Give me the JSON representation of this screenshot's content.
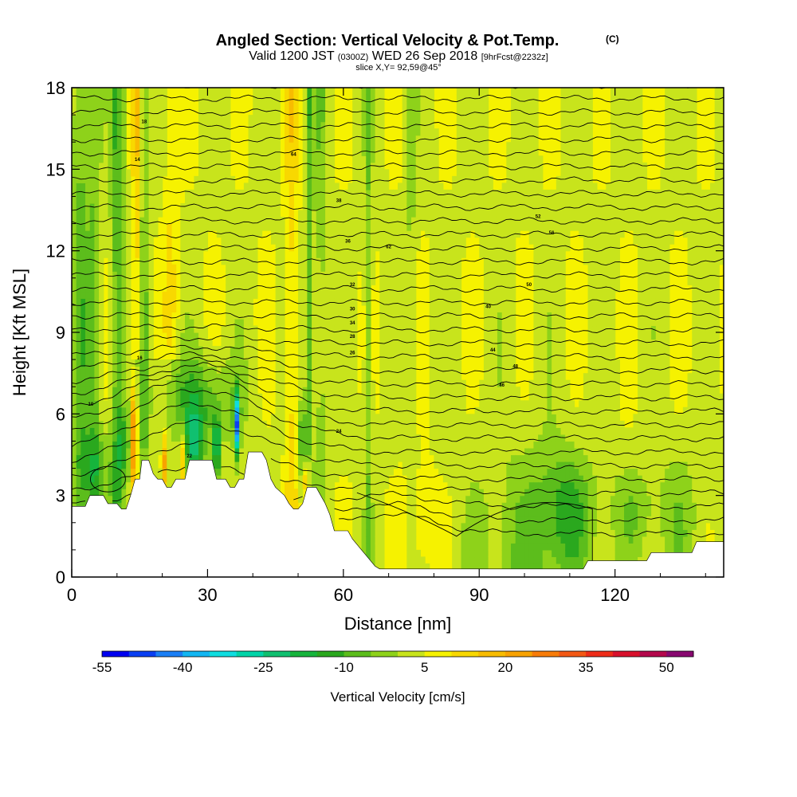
{
  "title": {
    "main": "Angled Section: Vertical Velocity & Pot.Temp.",
    "main_unit": "(C)",
    "valid_prefix": "Valid 1200 JST",
    "valid_utc": "(0300Z)",
    "valid_date": "WED 26 Sep 2018",
    "forecast": "[9hrFcst@2232z]",
    "slice": "slice X,Y= 92,59@45°"
  },
  "chart_data": {
    "type": "heatmap",
    "xlabel": "Distance [nm]",
    "ylabel": "Height [Kft MSL]",
    "xlim": [
      0,
      144
    ],
    "ylim": [
      0,
      18
    ],
    "x_ticks": [
      0,
      30,
      60,
      90,
      120
    ],
    "y_ticks": [
      0,
      3,
      6,
      9,
      12,
      15,
      18
    ],
    "grid": false,
    "colorbar": {
      "title": "Vertical Velocity [cm/s]",
      "levels": [
        -55,
        -50,
        -45,
        -40,
        -35,
        -30,
        -25,
        -20,
        -15,
        -10,
        -5,
        0,
        5,
        10,
        15,
        20,
        25,
        30,
        35,
        40,
        45,
        50,
        55
      ],
      "tick_labels": [
        -55,
        -40,
        -25,
        -10,
        5,
        20,
        35,
        50
      ],
      "colors": [
        "#0000f0",
        "#0a3ff2",
        "#1a7ff5",
        "#12b6f2",
        "#0fdde0",
        "#00d4a8",
        "#10c070",
        "#16b43c",
        "#2aa81e",
        "#5cbd1c",
        "#8ed21a",
        "#c8e41c",
        "#f6f200",
        "#f8d800",
        "#f8bc00",
        "#f8a200",
        "#f87c08",
        "#f35814",
        "#ee2c18",
        "#d8102c",
        "#b4084c",
        "#880870"
      ]
    },
    "terrain_kft": [
      [
        0,
        2.6
      ],
      [
        3,
        2.6
      ],
      [
        4,
        3.0
      ],
      [
        7,
        3.0
      ],
      [
        8,
        2.7
      ],
      [
        10,
        2.7
      ],
      [
        11,
        2.5
      ],
      [
        12,
        2.5
      ],
      [
        13,
        3.0
      ],
      [
        14,
        3.6
      ],
      [
        15,
        3.6
      ],
      [
        15.5,
        4.3
      ],
      [
        17,
        4.3
      ],
      [
        18,
        3.8
      ],
      [
        19,
        3.6
      ],
      [
        20,
        3.6
      ],
      [
        21,
        3.3
      ],
      [
        22,
        3.3
      ],
      [
        23,
        3.6
      ],
      [
        25,
        3.6
      ],
      [
        26,
        4.3
      ],
      [
        31,
        4.3
      ],
      [
        32,
        3.6
      ],
      [
        34,
        3.6
      ],
      [
        35,
        3.3
      ],
      [
        36,
        3.3
      ],
      [
        37,
        3.6
      ],
      [
        38,
        3.6
      ],
      [
        39,
        4.6
      ],
      [
        42,
        4.6
      ],
      [
        43,
        4.3
      ],
      [
        44,
        3.6
      ],
      [
        45,
        3.3
      ],
      [
        47,
        3.0
      ],
      [
        48,
        2.7
      ],
      [
        49,
        2.5
      ],
      [
        50,
        2.5
      ],
      [
        51,
        2.7
      ],
      [
        52,
        3.3
      ],
      [
        53,
        3.3
      ],
      [
        54,
        3.3
      ],
      [
        55,
        3.0
      ],
      [
        56,
        2.7
      ],
      [
        57,
        2.3
      ],
      [
        58,
        1.7
      ],
      [
        61,
        1.7
      ],
      [
        62,
        1.4
      ],
      [
        63,
        1.2
      ],
      [
        64,
        1.0
      ],
      [
        65,
        0.8
      ],
      [
        66,
        0.6
      ],
      [
        67,
        0.4
      ],
      [
        68,
        0.3
      ],
      [
        113,
        0.3
      ],
      [
        114,
        0.6
      ],
      [
        127,
        0.6
      ],
      [
        128,
        0.9
      ],
      [
        137,
        0.9
      ],
      [
        138,
        1.3
      ],
      [
        144,
        1.3
      ]
    ],
    "contour_label_values": [
      10,
      14,
      16,
      18,
      22,
      24,
      26,
      28,
      30,
      32,
      34,
      36,
      38,
      40,
      44,
      46,
      48,
      50,
      52,
      56,
      60,
      62,
      64
    ]
  }
}
